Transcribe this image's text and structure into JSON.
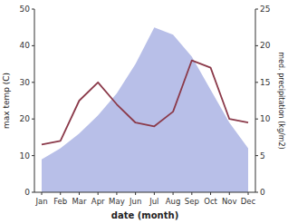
{
  "chart_data": {
    "type": "area",
    "categories": [
      "Jan",
      "Feb",
      "Mar",
      "Apr",
      "May",
      "Jun",
      "Jul",
      "Aug",
      "Sep",
      "Oct",
      "Nov",
      "Dec"
    ],
    "series": [
      {
        "type": "area",
        "color": "#b8bfe8",
        "values": [
          9,
          12,
          16,
          21,
          27,
          35,
          45,
          43,
          37,
          28,
          19,
          12
        ]
      },
      {
        "type": "line",
        "color": "#8b3a4a",
        "axis": "y2",
        "values": [
          6.5,
          7.0,
          12.5,
          15.0,
          12.0,
          9.5,
          9.0,
          11.0,
          18.0,
          17.0,
          10.0,
          9.5
        ]
      }
    ],
    "xlabel": "date (month)",
    "ylabel": "max temp (C)",
    "y2label": "med. precipitation (kg/m2)",
    "ylim": [
      0,
      50
    ],
    "yticks": [
      0,
      10,
      20,
      30,
      40,
      50
    ],
    "y2lim": [
      0,
      25
    ],
    "y2ticks": [
      0,
      5,
      10,
      15,
      20,
      25
    ],
    "grid": false
  }
}
